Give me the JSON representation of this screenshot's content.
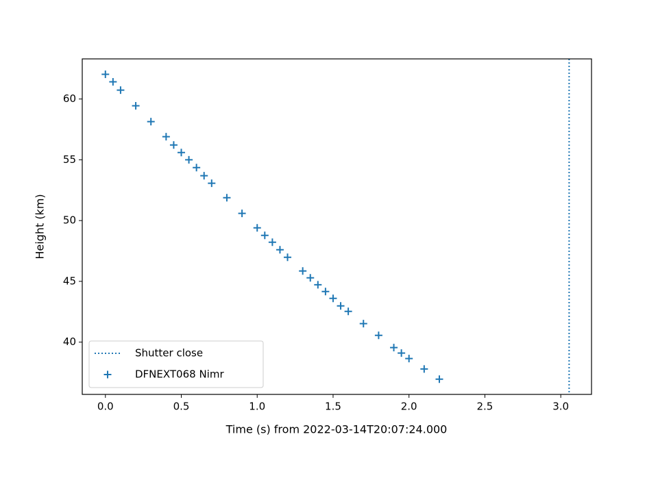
{
  "chart_data": {
    "type": "scatter",
    "xlabel": "Time (s) from 2022-03-14T20:07:24.000",
    "ylabel": "Height (km)",
    "xlim": [
      -0.1525,
      3.2025
    ],
    "ylim": [
      35.7,
      63.3
    ],
    "xticks": [
      {
        "value": 0,
        "label": "0.0"
      },
      0.5,
      {
        "value": 1,
        "label": "1.0"
      },
      1.5,
      {
        "value": 2,
        "label": "2.0"
      },
      2.5,
      {
        "value": 3,
        "label": "3.0"
      }
    ],
    "yticks": [
      40,
      45,
      50,
      55,
      60
    ],
    "grid": false,
    "legend": "lower left",
    "vlines": [
      {
        "name": "Shutter close",
        "x": 3.055,
        "color": "#1f77b4",
        "linestyle": "dotted"
      }
    ],
    "series": [
      {
        "name": "DFNEXT068 Nimr",
        "color": "#1f77b4",
        "marker": "+",
        "x": [
          0,
          0.05,
          0.1,
          0.2,
          0.3,
          0.4,
          0.45,
          0.5,
          0.55,
          0.6,
          0.65,
          0.7,
          0.8,
          0.9,
          1.0,
          1.05,
          1.1,
          1.15,
          1.2,
          1.3,
          1.35,
          1.4,
          1.45,
          1.5,
          1.55,
          1.6,
          1.7,
          1.8,
          1.9,
          1.95,
          2.0,
          2.1,
          2.2
        ],
        "values": [
          62.03,
          61.41,
          60.73,
          59.44,
          58.14,
          56.9,
          56.22,
          55.6,
          55.0,
          54.36,
          53.69,
          53.07,
          51.88,
          50.59,
          49.4,
          48.78,
          48.22,
          47.6,
          46.98,
          45.85,
          45.29,
          44.72,
          44.16,
          43.6,
          42.98,
          42.53,
          41.52,
          40.56,
          39.55,
          39.1,
          38.65,
          37.79,
          36.95
        ]
      }
    ]
  }
}
